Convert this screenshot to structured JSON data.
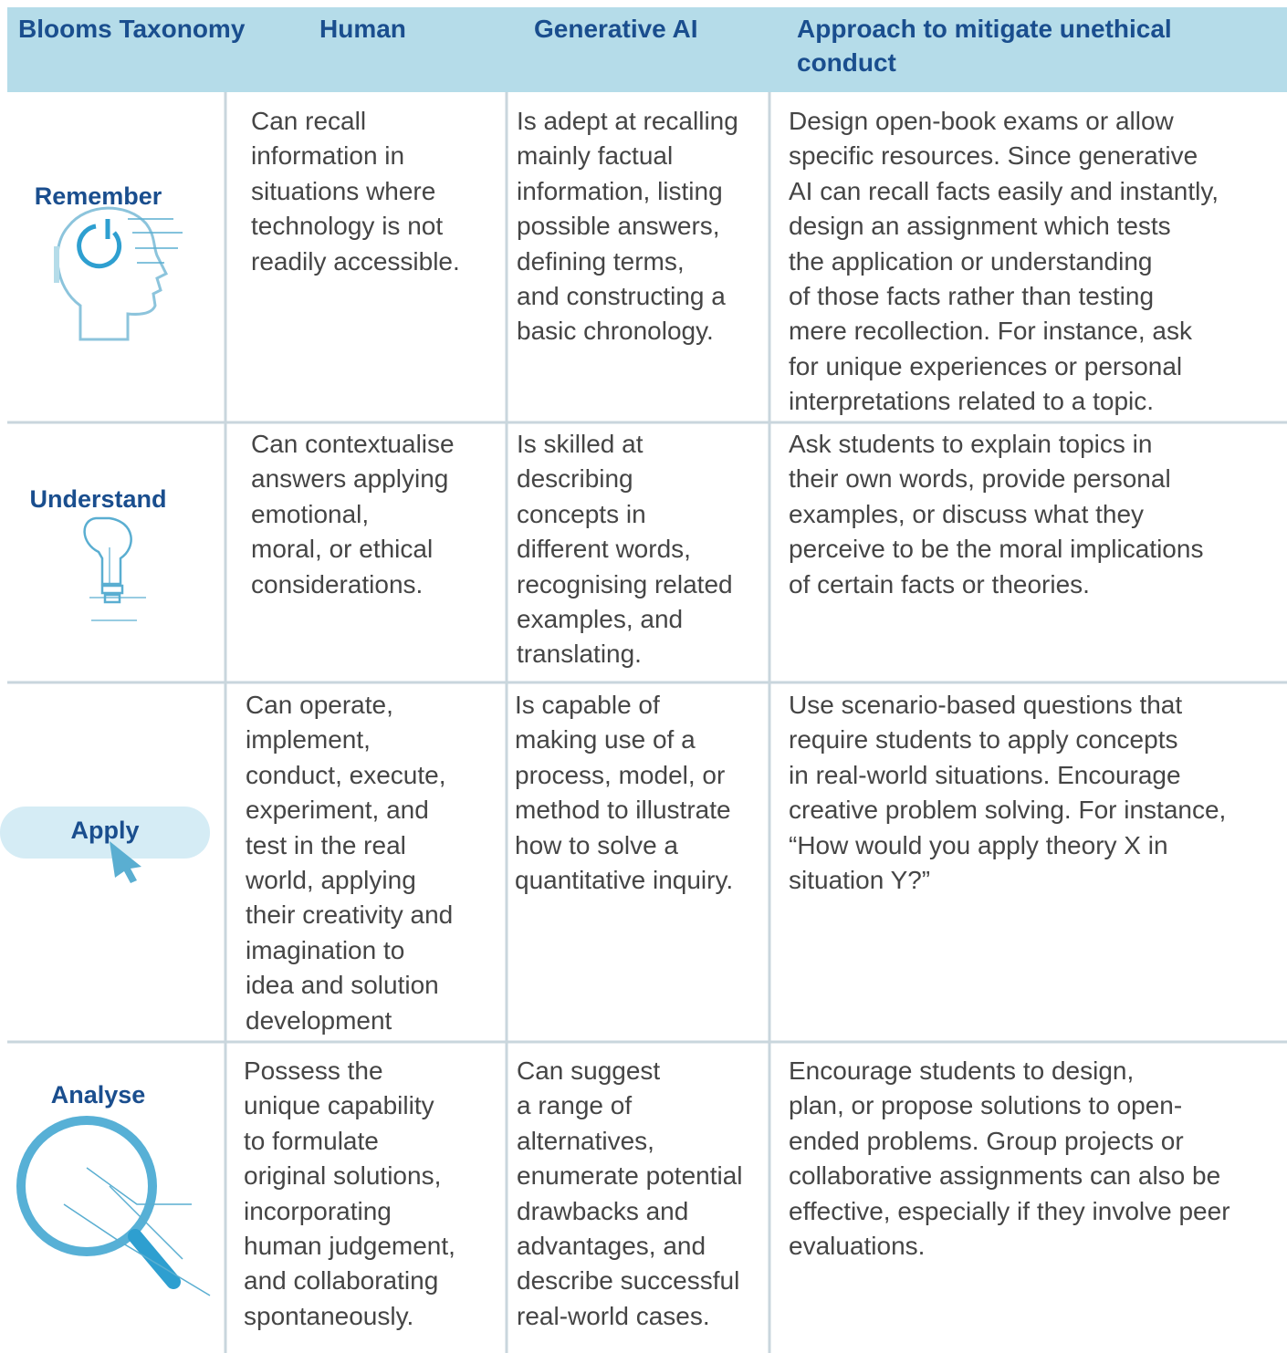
{
  "header": {
    "columns": [
      "Blooms Taxonomy",
      "Human",
      "Generative AI",
      "Approach to mitigate unethical conduct"
    ]
  },
  "rows": [
    {
      "label": "Remember",
      "human": [
        "Can recall",
        "information in",
        "situations where",
        "technology is not",
        "readily accessible."
      ],
      "ai": [
        "Is adept at recalling",
        "mainly factual",
        "information, listing",
        "possible answers,",
        "defining terms,",
        "and constructing a",
        "basic chronology."
      ],
      "approach": [
        "Design open-book exams or allow",
        "specific resources. Since generative",
        "AI can recall facts easily and instantly,",
        "design an assignment which tests",
        "the application or understanding",
        "of those facts rather than testing",
        "mere recollection. For instance, ask",
        "for unique experiences or personal",
        "interpretations related to a topic."
      ]
    },
    {
      "label": "Understand",
      "human": [
        "Can contextualise",
        "answers applying",
        "emotional,",
        "moral, or ethical",
        "considerations."
      ],
      "ai": [
        "Is skilled at",
        "describing",
        "concepts in",
        "different words,",
        "recognising related",
        "examples, and",
        "translating."
      ],
      "approach": [
        "Ask students to explain topics in",
        "their own words, provide personal",
        "examples, or discuss what they",
        "perceive to be  the moral implications",
        "of certain facts or theories."
      ]
    },
    {
      "label": "Apply",
      "human": [
        "Can operate,",
        "implement,",
        "conduct, execute,",
        "experiment, and",
        "test in the real",
        "world, applying",
        "their creativity and",
        "imagination to",
        "idea and solution",
        "development"
      ],
      "ai": [
        "Is capable of",
        "making use of a",
        "process, model, or",
        "method to illustrate",
        "how to solve a",
        "quantitative inquiry."
      ],
      "approach": [
        "Use scenario-based questions that",
        "require students to apply concepts",
        "in real-world situations. Encourage",
        "creative problem solving. For instance,",
        "“How would you apply theory X in",
        "situation Y?”"
      ]
    },
    {
      "label": "Analyse",
      "human": [
        "Possess the",
        "unique capability",
        "to formulate",
        "original solutions,",
        "incorporating",
        "human judgement,",
        "and collaborating",
        "spontaneously."
      ],
      "ai": [
        "Can suggest",
        "a range of",
        "alternatives,",
        "enumerate potential",
        "drawbacks and",
        "advantages, and",
        "describe successful",
        "real-world cases."
      ],
      "approach": [
        "Encourage students to design,",
        "plan, or propose solutions to open-",
        "ended problems. Group projects or",
        "collaborative assignments can also be",
        "effective, especially if they involve peer",
        "evaluations."
      ]
    }
  ]
}
